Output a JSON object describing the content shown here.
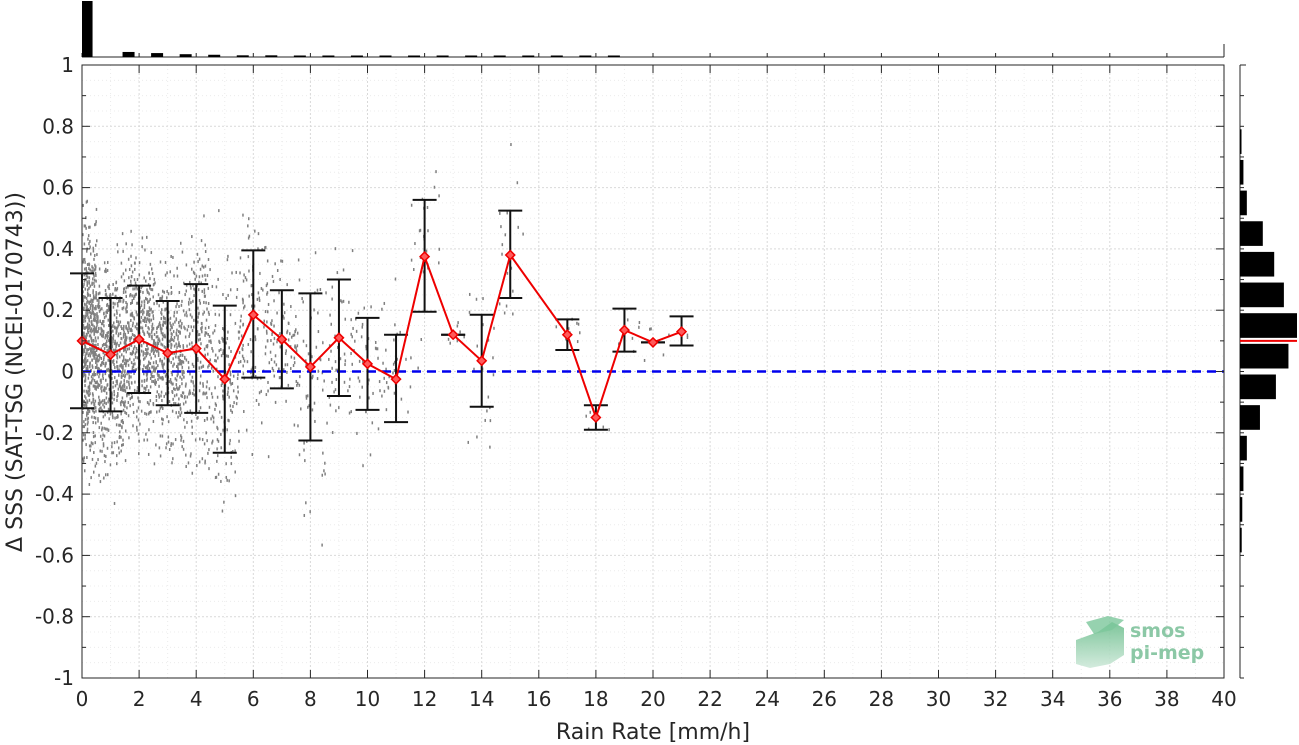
{
  "chart_data": {
    "type": "scatter",
    "xlabel": "Rain Rate [mm/h]",
    "ylabel": "Δ SSS (SAT-TSG (NCEI-0170743))",
    "xlim": [
      0,
      40
    ],
    "ylim": [
      -1,
      1
    ],
    "x_ticks": [
      "0",
      "2",
      "4",
      "6",
      "8",
      "10",
      "12",
      "14",
      "16",
      "18",
      "20",
      "22",
      "24",
      "26",
      "28",
      "30",
      "32",
      "34",
      "36",
      "38",
      "40"
    ],
    "y_ticks": [
      "1",
      "0.8",
      "0.6",
      "0.4",
      "0.2",
      "0",
      "-0.2",
      "-0.4",
      "-0.6",
      "-0.8",
      "-1"
    ],
    "grid": true,
    "zero_line": {
      "y": 0,
      "color": "#0000ee",
      "style": "dashed"
    },
    "mean_series": {
      "color": "#ee0000",
      "x": [
        0,
        1,
        2,
        3,
        4,
        5,
        6,
        7,
        8,
        9,
        10,
        11,
        12,
        13,
        14,
        15,
        17,
        18,
        19,
        20,
        21
      ],
      "y": [
        0.1,
        0.055,
        0.105,
        0.06,
        0.075,
        -0.025,
        0.185,
        0.105,
        0.015,
        0.11,
        0.025,
        -0.025,
        0.375,
        0.12,
        0.035,
        0.38,
        0.12,
        -0.15,
        0.135,
        0.095,
        0.13
      ],
      "err_low": [
        -0.12,
        -0.13,
        -0.07,
        -0.11,
        -0.135,
        -0.265,
        -0.02,
        -0.055,
        -0.225,
        -0.08,
        -0.125,
        -0.165,
        0.195,
        0.12,
        -0.115,
        0.24,
        0.07,
        -0.19,
        0.065,
        0.095,
        0.085
      ],
      "err_high": [
        0.32,
        0.24,
        0.28,
        0.23,
        0.285,
        0.215,
        0.395,
        0.265,
        0.255,
        0.3,
        0.175,
        0.12,
        0.56,
        0.12,
        0.185,
        0.525,
        0.17,
        -0.11,
        0.205,
        0.095,
        0.18
      ]
    },
    "scatter_color": "#808080",
    "top_histogram": {
      "bin_width": 1,
      "bin_starts": [
        0,
        1,
        2,
        3,
        4,
        5,
        6,
        7,
        8,
        9,
        10,
        11,
        12,
        13,
        14,
        15,
        16,
        17,
        18
      ],
      "relative_counts": [
        1.0,
        0.09,
        0.07,
        0.05,
        0.04,
        0.03,
        0.03,
        0.02,
        0.02,
        0.02,
        0.02,
        0.02,
        0.02,
        0.01,
        0.01,
        0.02,
        0.01,
        0.02,
        0.01
      ]
    },
    "right_histogram": {
      "bin_width": 0.1,
      "bin_starts": [
        -0.6,
        -0.5,
        -0.4,
        -0.3,
        -0.2,
        -0.1,
        0.0,
        0.1,
        0.2,
        0.3,
        0.4,
        0.5,
        0.6,
        0.7
      ],
      "relative_counts": [
        0.03,
        0.04,
        0.06,
        0.12,
        0.35,
        0.63,
        0.85,
        1.0,
        0.77,
        0.6,
        0.4,
        0.12,
        0.06,
        0.02
      ],
      "mean_line": {
        "y": 0.1,
        "color": "#ee0000"
      }
    }
  },
  "logo": {
    "line1": "smos",
    "line2": "pi-mep"
  }
}
